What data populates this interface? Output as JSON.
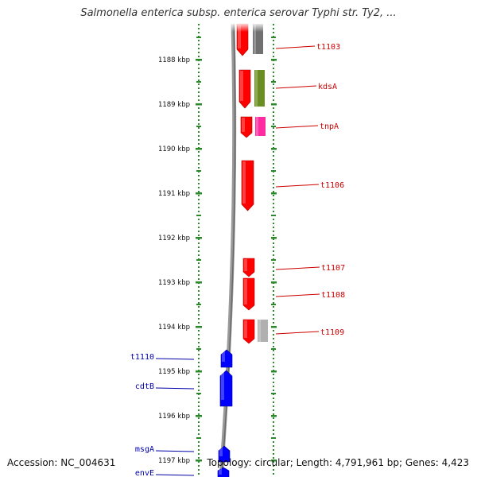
{
  "title": "Salmonella enterica subsp. enterica serovar Typhi str. Ty2, ...",
  "accession_text": "Accession: NC_004631",
  "summary_text": "Topology: circular; Length: 4,791,961 bp; Genes: 4,423",
  "ruler": {
    "ticks": [
      "1188 kbp",
      "1189 kbp",
      "1190 kbp",
      "1191 kbp",
      "1192 kbp",
      "1193 kbp",
      "1194 kbp",
      "1195 kbp",
      "1196 kbp",
      "1197 kbp"
    ]
  },
  "colors": {
    "forward_gene": "#ff0000",
    "reverse_gene": "#0000ff",
    "forward_label": "#cc0000",
    "reverse_label": "#0000aa",
    "ruler_dots": "#2a8a2a",
    "backbone": "#808080",
    "cog_gray": "#707070",
    "cog_olive": "#6b8e23",
    "cog_magenta": "#ff2aa0",
    "cog_lightgray": "#b0b0b0"
  },
  "genes": [
    {
      "label": "t1103",
      "strand": "forward",
      "cog": "gray"
    },
    {
      "label": "kdsA",
      "strand": "forward",
      "cog": "olive"
    },
    {
      "label": "tnpA",
      "strand": "forward",
      "cog": "magenta"
    },
    {
      "label": "t1106",
      "strand": "forward",
      "cog": ""
    },
    {
      "label": "t1107",
      "strand": "forward",
      "cog": ""
    },
    {
      "label": "t1108",
      "strand": "forward",
      "cog": ""
    },
    {
      "label": "t1109",
      "strand": "forward",
      "cog": "lightgray"
    },
    {
      "label": "t1110",
      "strand": "reverse",
      "cog": ""
    },
    {
      "label": "cdtB",
      "strand": "reverse",
      "cog": ""
    },
    {
      "label": "msgA",
      "strand": "reverse",
      "cog": ""
    },
    {
      "label": "envE",
      "strand": "reverse",
      "cog": ""
    }
  ]
}
